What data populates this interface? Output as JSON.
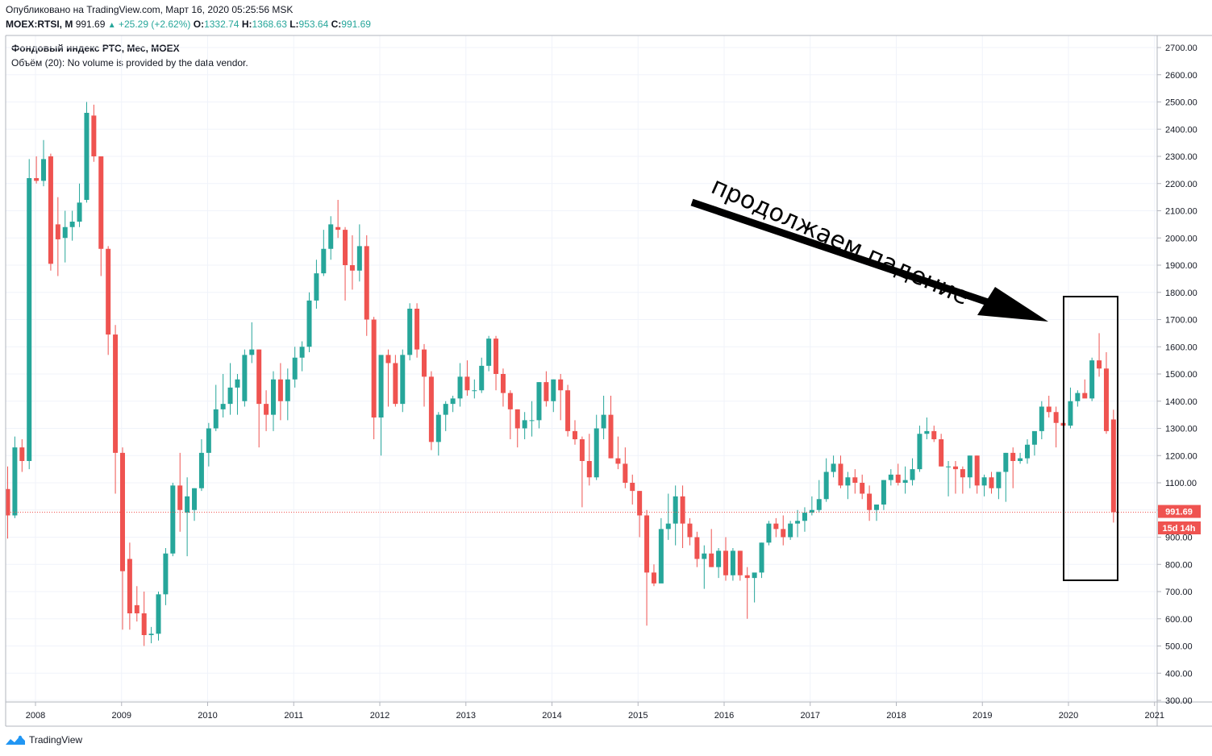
{
  "header": {
    "published": "Опубликовано на TradingView.com, Март 16, 2020 05:25:56 MSK",
    "symbol": "MOEX:RTSI, M",
    "price": "991.69",
    "change": "+25.29 (+2.62%)",
    "o_label": "O:",
    "o_value": "1332.74",
    "h_label": "H:",
    "h_value": "1368.63",
    "l_label": "L:",
    "l_value": "953.64",
    "c_label": "C:",
    "c_value": "991.69",
    "title": "Фондовый индекс РТС, Мес, MOEX",
    "volume": "Объём (20): No volume is provided by the data vendor."
  },
  "brand": {
    "name": "TradingView",
    "logo_icon": "tradingview-logo-icon"
  },
  "colors": {
    "up": "#26a69a",
    "down": "#ef5350",
    "grid": "#f0f3fa",
    "price_line": "#ef5350"
  },
  "chart_data": {
    "type": "candlestick",
    "ylim": [
      300,
      2750
    ],
    "y_ticks": [
      "2700.00",
      "2600.00",
      "2500.00",
      "2400.00",
      "2300.00",
      "2200.00",
      "2100.00",
      "2000.00",
      "1900.00",
      "1800.00",
      "1700.00",
      "1600.00",
      "1500.00",
      "1400.00",
      "1300.00",
      "1200.00",
      "1100.00",
      "1000.00",
      "900.00",
      "800.00",
      "700.00",
      "600.00",
      "500.00",
      "400.00",
      "300.00"
    ],
    "x_ticks": [
      "2008",
      "2009",
      "2010",
      "2011",
      "2012",
      "2013",
      "2014",
      "2015",
      "2016",
      "2017",
      "2018",
      "2019",
      "2020",
      "2021"
    ],
    "last_price_label": "991.69",
    "countdown_label": "15d 14h",
    "last_price": 991.69,
    "annotation": {
      "text": "продолжаем падение"
    },
    "candles": [
      [
        1.0,
        1077,
        1160,
        895,
        980
      ],
      [
        2.0,
        980,
        1270,
        970,
        1230
      ],
      [
        3.0,
        1230,
        1260,
        1140,
        1180
      ],
      [
        4.0,
        1180,
        2290,
        1150,
        2220
      ],
      [
        5.0,
        2220,
        2300,
        2200,
        2210
      ],
      [
        6.0,
        2210,
        2360,
        2190,
        2290
      ],
      [
        7.0,
        2300,
        2310,
        1880,
        1905
      ],
      [
        8.0,
        2050,
        2150,
        1860,
        1995
      ],
      [
        9.0,
        2000,
        2100,
        1910,
        2040
      ],
      [
        10.0,
        2040,
        2100,
        1990,
        2060
      ],
      [
        11.0,
        2060,
        2200,
        2040,
        2130
      ],
      [
        12.0,
        2140,
        2500,
        2130,
        2460
      ],
      [
        13.0,
        2450,
        2490,
        2280,
        2300
      ],
      [
        14.0,
        2300,
        2300,
        1860,
        1960
      ],
      [
        15.0,
        1960,
        1970,
        1570,
        1645
      ],
      [
        16.0,
        1645,
        1680,
        1060,
        1210
      ],
      [
        17.0,
        1210,
        1230,
        560,
        775
      ],
      [
        18.0,
        820,
        880,
        560,
        620
      ],
      [
        19.0,
        650,
        720,
        590,
        620
      ],
      [
        20.0,
        620,
        700,
        500,
        540
      ],
      [
        21.0,
        540,
        570,
        510,
        545
      ],
      [
        22.0,
        545,
        700,
        520,
        690
      ],
      [
        23.0,
        690,
        860,
        650,
        840
      ],
      [
        24.0,
        840,
        1100,
        830,
        1090
      ],
      [
        25.0,
        1090,
        1210,
        920,
        1000
      ],
      [
        26.0,
        990,
        1120,
        830,
        1050
      ],
      [
        27.0,
        1000,
        1080,
        960,
        1080
      ],
      [
        28.0,
        1080,
        1260,
        1070,
        1210
      ],
      [
        29.0,
        1210,
        1320,
        1160,
        1300
      ],
      [
        30.0,
        1300,
        1460,
        1290,
        1370
      ],
      [
        31.0,
        1370,
        1500,
        1340,
        1390
      ],
      [
        32.0,
        1390,
        1540,
        1350,
        1450
      ],
      [
        33.0,
        1450,
        1500,
        1350,
        1480
      ],
      [
        34.0,
        1400,
        1590,
        1380,
        1570
      ],
      [
        35.0,
        1570,
        1690,
        1540,
        1590
      ],
      [
        36.0,
        1590,
        1590,
        1230,
        1390
      ],
      [
        37.0,
        1390,
        1440,
        1290,
        1350
      ],
      [
        38.0,
        1350,
        1510,
        1290,
        1480
      ],
      [
        39.0,
        1480,
        1540,
        1330,
        1400
      ],
      [
        40.0,
        1400,
        1520,
        1330,
        1480
      ],
      [
        41.0,
        1480,
        1600,
        1450,
        1560
      ],
      [
        42.0,
        1560,
        1620,
        1510,
        1600
      ],
      [
        43.0,
        1600,
        1800,
        1580,
        1770
      ],
      [
        44.0,
        1770,
        1920,
        1740,
        1870
      ],
      [
        45.0,
        1870,
        2030,
        1860,
        1960
      ],
      [
        46.0,
        1960,
        2080,
        1920,
        2050
      ],
      [
        47.0,
        2040,
        2140,
        2000,
        2030
      ],
      [
        48.0,
        2030,
        2040,
        1770,
        1900
      ],
      [
        49.0,
        1900,
        2010,
        1810,
        1880
      ],
      [
        50.0,
        1880,
        2050,
        1840,
        1970
      ],
      [
        51.0,
        1970,
        2010,
        1640,
        1700
      ],
      [
        52.0,
        1700,
        1710,
        1260,
        1340
      ],
      [
        53.0,
        1340,
        1560,
        1200,
        1570
      ],
      [
        54.0,
        1570,
        1590,
        1380,
        1540
      ],
      [
        55.0,
        1540,
        1570,
        1380,
        1390
      ],
      [
        56.0,
        1390,
        1590,
        1360,
        1570
      ],
      [
        57.0,
        1570,
        1760,
        1550,
        1740
      ],
      [
        58.0,
        1740,
        1760,
        1560,
        1590
      ],
      [
        59.0,
        1590,
        1610,
        1380,
        1490
      ],
      [
        60.0,
        1490,
        1510,
        1220,
        1250
      ],
      [
        61.0,
        1250,
        1360,
        1200,
        1350
      ],
      [
        62.0,
        1350,
        1400,
        1290,
        1390
      ],
      [
        63.0,
        1390,
        1420,
        1360,
        1410
      ],
      [
        64.0,
        1410,
        1540,
        1380,
        1490
      ],
      [
        65.0,
        1490,
        1550,
        1420,
        1440
      ],
      [
        66.0,
        1440,
        1480,
        1410,
        1440
      ],
      [
        67.0,
        1440,
        1560,
        1430,
        1530
      ],
      [
        68.0,
        1530,
        1640,
        1510,
        1630
      ],
      [
        69.0,
        1630,
        1640,
        1440,
        1500
      ],
      [
        70.0,
        1500,
        1520,
        1380,
        1430
      ],
      [
        71.0,
        1430,
        1440,
        1260,
        1370
      ],
      [
        72.0,
        1370,
        1370,
        1230,
        1300
      ],
      [
        73.0,
        1300,
        1360,
        1260,
        1330
      ],
      [
        74.0,
        1330,
        1400,
        1270,
        1330
      ],
      [
        75.0,
        1330,
        1470,
        1300,
        1470
      ],
      [
        76.0,
        1470,
        1510,
        1380,
        1400
      ],
      [
        77.0,
        1400,
        1480,
        1360,
        1480
      ],
      [
        78.0,
        1480,
        1500,
        1330,
        1440
      ],
      [
        79.0,
        1440,
        1460,
        1270,
        1290
      ],
      [
        80.0,
        1290,
        1330,
        1240,
        1260
      ],
      [
        81.0,
        1260,
        1270,
        1010,
        1180
      ],
      [
        82.0,
        1180,
        1280,
        1090,
        1120
      ],
      [
        83.0,
        1120,
        1350,
        1110,
        1300
      ],
      [
        84.0,
        1300,
        1420,
        1260,
        1350
      ],
      [
        85.0,
        1350,
        1420,
        1190,
        1190
      ],
      [
        86.0,
        1190,
        1270,
        1150,
        1170
      ],
      [
        87.0,
        1170,
        1230,
        1080,
        1100
      ],
      [
        88.0,
        1100,
        1130,
        1020,
        1070
      ],
      [
        89.0,
        1070,
        1070,
        900,
        980
      ],
      [
        90.0,
        980,
        1000,
        575,
        770
      ],
      [
        91.0,
        770,
        800,
        720,
        730
      ],
      [
        92.0,
        730,
        970,
        740,
        930
      ],
      [
        93.0,
        930,
        1060,
        890,
        950
      ],
      [
        94.0,
        950,
        1090,
        870,
        1050
      ],
      [
        95.0,
        1050,
        1090,
        860,
        950
      ],
      [
        96.0,
        950,
        970,
        870,
        900
      ],
      [
        97.0,
        900,
        920,
        790,
        820
      ],
      [
        98.0,
        820,
        870,
        710,
        840
      ],
      [
        99.0,
        840,
        930,
        790,
        790
      ],
      [
        100.0,
        790,
        860,
        750,
        850
      ],
      [
        101.0,
        850,
        900,
        740,
        760
      ],
      [
        102.0,
        760,
        860,
        740,
        850
      ],
      [
        103.0,
        850,
        850,
        740,
        760
      ],
      [
        104.0,
        760,
        790,
        600,
        750
      ],
      [
        105.0,
        750,
        760,
        660,
        770
      ],
      [
        106.0,
        770,
        880,
        750,
        880
      ],
      [
        107.0,
        880,
        960,
        870,
        950
      ],
      [
        108.0,
        950,
        970,
        900,
        930
      ],
      [
        109.0,
        930,
        980,
        870,
        900
      ],
      [
        110.0,
        900,
        960,
        890,
        950
      ],
      [
        111.0,
        950,
        1000,
        900,
        960
      ],
      [
        112.0,
        960,
        1010,
        920,
        990
      ],
      [
        113.0,
        990,
        1050,
        980,
        1000
      ],
      [
        114.0,
        1000,
        1110,
        990,
        1040
      ],
      [
        115.0,
        1040,
        1190,
        1030,
        1140
      ],
      [
        116.0,
        1140,
        1200,
        1120,
        1170
      ],
      [
        117.0,
        1170,
        1200,
        1080,
        1090
      ],
      [
        118.0,
        1090,
        1140,
        1040,
        1120
      ],
      [
        119.0,
        1120,
        1150,
        1060,
        1100
      ],
      [
        120.0,
        1100,
        1130,
        1040,
        1060
      ],
      [
        121.0,
        1060,
        1090,
        960,
        1000
      ],
      [
        122.0,
        1000,
        1010,
        960,
        1020
      ],
      [
        123.0,
        1020,
        1110,
        1000,
        1110
      ],
      [
        124.0,
        1110,
        1150,
        1090,
        1130
      ],
      [
        125.0,
        1130,
        1170,
        1090,
        1100
      ],
      [
        126.0,
        1100,
        1160,
        1060,
        1110
      ],
      [
        127.0,
        1110,
        1190,
        1090,
        1150
      ],
      [
        128.0,
        1150,
        1310,
        1140,
        1280
      ],
      [
        129.0,
        1280,
        1340,
        1260,
        1290
      ],
      [
        130.0,
        1290,
        1310,
        1250,
        1260
      ],
      [
        131.0,
        1260,
        1280,
        1160,
        1160
      ],
      [
        132.0,
        1160,
        1180,
        1050,
        1160
      ],
      [
        133.0,
        1160,
        1180,
        1060,
        1150
      ],
      [
        134.0,
        1150,
        1160,
        1060,
        1120
      ],
      [
        135.0,
        1120,
        1200,
        1080,
        1200
      ],
      [
        136.0,
        1200,
        1200,
        1060,
        1090
      ],
      [
        137.0,
        1090,
        1130,
        1050,
        1120
      ],
      [
        138.0,
        1120,
        1140,
        1060,
        1080
      ],
      [
        139.0,
        1080,
        1130,
        1040,
        1140
      ],
      [
        140.0,
        1140,
        1210,
        1030,
        1210
      ],
      [
        141.0,
        1210,
        1230,
        1080,
        1180
      ],
      [
        142.0,
        1180,
        1210,
        1170,
        1190
      ],
      [
        143.0,
        1190,
        1260,
        1170,
        1240
      ],
      [
        144.0,
        1240,
        1280,
        1200,
        1290
      ],
      [
        145.0,
        1290,
        1400,
        1260,
        1380
      ],
      [
        146.0,
        1380,
        1420,
        1340,
        1360
      ],
      [
        147.0,
        1360,
        1380,
        1230,
        1320
      ],
      [
        148.0,
        1320,
        1450,
        1310,
        1310
      ],
      [
        149.0,
        1310,
        1450,
        1300,
        1400
      ],
      [
        150.0,
        1400,
        1440,
        1380,
        1430
      ],
      [
        151.0,
        1430,
        1480,
        1420,
        1410
      ],
      [
        152.0,
        1410,
        1560,
        1400,
        1550
      ],
      [
        153.0,
        1550,
        1650,
        1490,
        1520
      ],
      [
        154.0,
        1520,
        1580,
        1280,
        1290
      ],
      [
        155.0,
        1332.74,
        1368.63,
        953.64,
        991.69
      ]
    ]
  }
}
